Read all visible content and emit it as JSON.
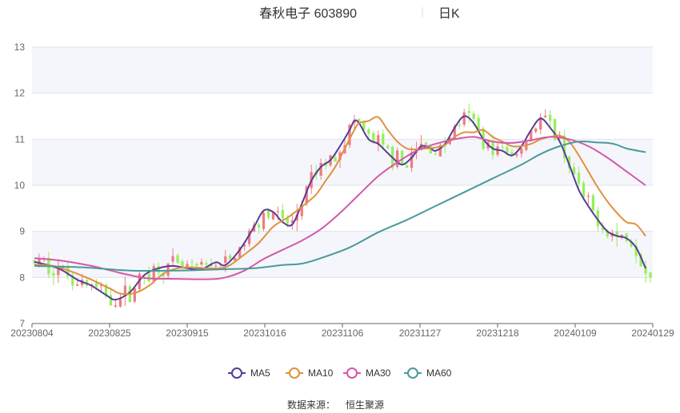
{
  "chart_data": {
    "type": "line",
    "title": "春秋电子 603890",
    "period": "日K",
    "source_label": "数据来源：",
    "source_name": "恒生聚源",
    "ylim": [
      7,
      13
    ],
    "yticks": [
      7,
      8,
      9,
      10,
      11,
      12,
      13
    ],
    "x_tick_labels": [
      "20230804",
      "20230825",
      "20230915",
      "20231016",
      "20231106",
      "20231127",
      "20231218",
      "20240109",
      "20240129"
    ],
    "trading_days": 116,
    "colors": {
      "up": "#f07c82",
      "down": "#95f05c",
      "MA5": "#5a3c96",
      "MA10": "#e0913c",
      "MA30": "#d459a8",
      "MA60": "#4a9a9a"
    },
    "series": [
      {
        "name": "MA5",
        "key": "MA5",
        "points": [
          [
            0,
            8.34
          ],
          [
            5,
            8.2
          ],
          [
            9,
            7.95
          ],
          [
            12,
            7.82
          ],
          [
            15,
            7.62
          ],
          [
            17,
            7.52
          ],
          [
            20,
            7.68
          ],
          [
            23,
            8.05
          ],
          [
            26,
            8.2
          ],
          [
            29,
            8.25
          ],
          [
            32,
            8.2
          ],
          [
            35,
            8.18
          ],
          [
            38,
            8.33
          ],
          [
            40,
            8.27
          ],
          [
            43,
            8.6
          ],
          [
            46,
            9.1
          ],
          [
            48,
            9.45
          ],
          [
            50,
            9.42
          ],
          [
            52,
            9.2
          ],
          [
            54,
            9.15
          ],
          [
            56,
            9.6
          ],
          [
            58,
            10.1
          ],
          [
            60,
            10.4
          ],
          [
            62,
            10.55
          ],
          [
            64,
            10.85
          ],
          [
            66,
            11.2
          ],
          [
            67,
            11.4
          ],
          [
            68,
            11.35
          ],
          [
            70,
            11.0
          ],
          [
            72,
            10.9
          ],
          [
            74,
            10.7
          ],
          [
            75,
            10.6
          ],
          [
            77,
            10.45
          ],
          [
            79,
            10.6
          ],
          [
            81,
            10.85
          ],
          [
            83,
            10.8
          ],
          [
            84,
            10.75
          ],
          [
            86,
            10.9
          ],
          [
            88,
            11.25
          ],
          [
            90,
            11.5
          ],
          [
            92,
            11.35
          ],
          [
            94,
            11.0
          ],
          [
            96,
            10.8
          ],
          [
            98,
            10.75
          ],
          [
            100,
            10.65
          ],
          [
            102,
            10.85
          ],
          [
            104,
            11.2
          ],
          [
            106,
            11.45
          ],
          [
            108,
            11.25
          ],
          [
            110,
            10.95
          ],
          [
            112,
            10.45
          ],
          [
            114,
            9.9
          ],
          [
            116,
            9.55
          ],
          [
            118,
            9.25
          ],
          [
            120,
            9.0
          ],
          [
            122,
            8.9
          ],
          [
            124,
            8.85
          ],
          [
            126,
            8.65
          ],
          [
            128,
            8.2
          ]
        ]
      },
      {
        "name": "MA10",
        "key": "MA10",
        "points": [
          [
            0,
            8.28
          ],
          [
            4,
            8.25
          ],
          [
            8,
            8.12
          ],
          [
            12,
            7.95
          ],
          [
            16,
            7.75
          ],
          [
            18,
            7.65
          ],
          [
            21,
            7.66
          ],
          [
            24,
            7.82
          ],
          [
            27,
            8.08
          ],
          [
            30,
            8.2
          ],
          [
            33,
            8.22
          ],
          [
            36,
            8.2
          ],
          [
            39,
            8.2
          ],
          [
            41,
            8.27
          ],
          [
            44,
            8.5
          ],
          [
            47,
            8.75
          ],
          [
            50,
            9.1
          ],
          [
            53,
            9.3
          ],
          [
            55,
            9.45
          ],
          [
            57,
            9.62
          ],
          [
            59,
            9.8
          ],
          [
            61,
            10.1
          ],
          [
            63,
            10.4
          ],
          [
            65,
            10.8
          ],
          [
            67,
            11.2
          ],
          [
            68,
            11.35
          ],
          [
            70,
            11.4
          ],
          [
            72,
            11.48
          ],
          [
            74,
            11.2
          ],
          [
            76,
            10.95
          ],
          [
            78,
            10.8
          ],
          [
            80,
            10.78
          ],
          [
            82,
            10.8
          ],
          [
            84,
            10.82
          ],
          [
            86,
            10.88
          ],
          [
            88,
            11.05
          ],
          [
            90,
            11.15
          ],
          [
            92,
            11.15
          ],
          [
            94,
            11.2
          ],
          [
            96,
            11.05
          ],
          [
            98,
            10.95
          ],
          [
            100,
            10.85
          ],
          [
            102,
            10.85
          ],
          [
            104,
            10.9
          ],
          [
            106,
            11.0
          ],
          [
            108,
            11.05
          ],
          [
            110,
            11.08
          ],
          [
            112,
            10.95
          ],
          [
            114,
            10.65
          ],
          [
            116,
            10.3
          ],
          [
            118,
            9.95
          ],
          [
            120,
            9.65
          ],
          [
            122,
            9.4
          ],
          [
            124,
            9.2
          ],
          [
            126,
            9.15
          ],
          [
            128,
            8.9
          ]
        ]
      },
      {
        "name": "MA30",
        "key": "MA30",
        "points": [
          [
            0,
            8.42
          ],
          [
            6,
            8.36
          ],
          [
            12,
            8.25
          ],
          [
            16,
            8.15
          ],
          [
            20,
            8.05
          ],
          [
            24,
            7.98
          ],
          [
            30,
            7.97
          ],
          [
            36,
            7.96
          ],
          [
            40,
            8.0
          ],
          [
            44,
            8.15
          ],
          [
            48,
            8.4
          ],
          [
            52,
            8.6
          ],
          [
            56,
            8.8
          ],
          [
            60,
            9.05
          ],
          [
            64,
            9.4
          ],
          [
            68,
            9.8
          ],
          [
            72,
            10.2
          ],
          [
            76,
            10.5
          ],
          [
            80,
            10.75
          ],
          [
            84,
            10.9
          ],
          [
            88,
            11.0
          ],
          [
            92,
            11.05
          ],
          [
            96,
            10.95
          ],
          [
            100,
            10.92
          ],
          [
            104,
            10.98
          ],
          [
            108,
            11.05
          ],
          [
            112,
            11.0
          ],
          [
            116,
            10.85
          ],
          [
            120,
            10.6
          ],
          [
            124,
            10.3
          ],
          [
            128,
            10.0
          ]
        ]
      },
      {
        "name": "MA60",
        "key": "MA60",
        "points": [
          [
            0,
            8.25
          ],
          [
            10,
            8.22
          ],
          [
            20,
            8.15
          ],
          [
            30,
            8.15
          ],
          [
            40,
            8.18
          ],
          [
            46,
            8.2
          ],
          [
            52,
            8.27
          ],
          [
            56,
            8.3
          ],
          [
            60,
            8.42
          ],
          [
            66,
            8.65
          ],
          [
            72,
            8.98
          ],
          [
            78,
            9.25
          ],
          [
            84,
            9.55
          ],
          [
            90,
            9.85
          ],
          [
            96,
            10.15
          ],
          [
            102,
            10.45
          ],
          [
            106,
            10.68
          ],
          [
            110,
            10.85
          ],
          [
            114,
            10.95
          ],
          [
            118,
            10.93
          ],
          [
            120,
            10.92
          ],
          [
            122,
            10.88
          ],
          [
            124,
            10.8
          ],
          [
            128,
            10.72
          ]
        ]
      }
    ],
    "candles_mode": "generated-from-MA5",
    "candle_seed": 7
  }
}
